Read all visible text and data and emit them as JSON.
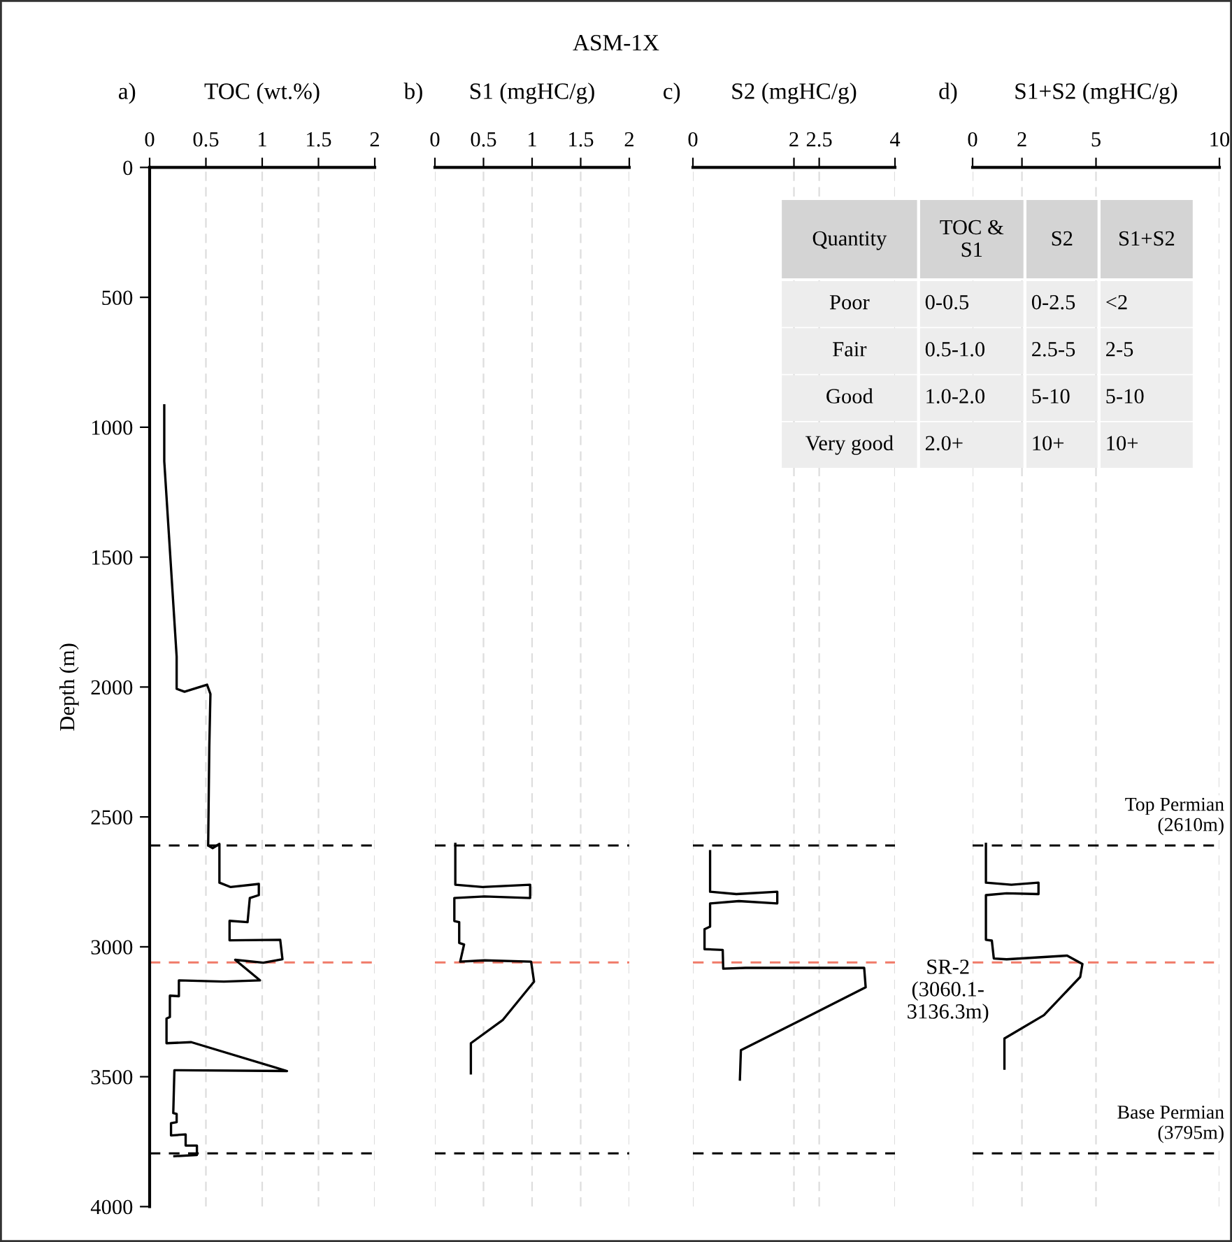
{
  "chart_data": [
    {
      "type": "line",
      "xlabel": "TOC (wt.%)",
      "ylabel": "Depth (m)",
      "annotations": [
        "a)"
      ],
      "xlim": [
        0,
        2
      ],
      "xticks": [
        0,
        0.5,
        1,
        1.5,
        2
      ],
      "ylim": [
        4000,
        0
      ],
      "yticks": [
        0,
        500,
        1000,
        1500,
        2000,
        2500,
        3000,
        3500,
        4000
      ],
      "grid": "x",
      "line_style": "solid",
      "series": [
        {
          "color": "#000000",
          "x": [
            0.13,
            0.13,
            0.24,
            0.24,
            0.31,
            0.51,
            0.54,
            0.53,
            0.52,
            0.56,
            0.62,
            0.62,
            0.72,
            0.97,
            0.97,
            0.89,
            0.87,
            0.71,
            0.71,
            1.16,
            1.18,
            1.01,
            0.76,
            0.98,
            0.66,
            0.26,
            0.26,
            0.18,
            0.18,
            0.15,
            0.15,
            0.37,
            1.22,
            0.22,
            0.21,
            0.24,
            0.24,
            0.19,
            0.19,
            0.32,
            0.32,
            0.42,
            0.42,
            0.22
          ],
          "values": [
            916,
            1131,
            1883,
            2007,
            2018,
            1991,
            2027,
            2233,
            2610,
            2620,
            2604,
            2753,
            2770,
            2758,
            2801,
            2812,
            2905,
            2900,
            2975,
            2973,
            3048,
            3061,
            3050,
            3129,
            3134,
            3129,
            3190,
            3188,
            3270,
            3276,
            3371,
            3367,
            3478,
            3475,
            3640,
            3643,
            3675,
            3679,
            3726,
            3722,
            3765,
            3765,
            3801,
            3806
          ]
        }
      ],
      "ref_lines": [
        {
          "axis": "y",
          "value": 2610,
          "color": "#000000",
          "line_style": "dashed"
        },
        {
          "axis": "y",
          "value": 3060.1,
          "color": "#f07a68",
          "line_style": "dashed"
        },
        {
          "axis": "y",
          "value": 3795,
          "color": "#000000",
          "line_style": "dashed"
        }
      ]
    },
    {
      "type": "line",
      "title": "ASM-1X",
      "xlabel": "S1 (mgHC/g)",
      "annotations": [
        "b)"
      ],
      "xlim": [
        0,
        2
      ],
      "xticks": [
        0,
        0.5,
        1,
        1.5,
        2
      ],
      "ylim": [
        4000,
        0
      ],
      "tick_labels": "x",
      "grid": "x",
      "line_style": "solid",
      "series": [
        {
          "color": "#000000",
          "x": [
            0.21,
            0.21,
            0.49,
            0.98,
            0.98,
            0.51,
            0.2,
            0.2,
            0.25,
            0.25,
            0.3,
            0.26,
            0.51,
            0.99,
            1.02,
            0.7,
            0.37,
            0.37
          ],
          "values": [
            2604,
            2761,
            2770,
            2761,
            2812,
            2806,
            2812,
            2901,
            2905,
            2985,
            2991,
            3057,
            3052,
            3057,
            3134,
            3281,
            3371,
            3487
          ]
        }
      ],
      "ref_lines": [
        {
          "axis": "y",
          "value": 2610,
          "color": "#000000",
          "line_style": "dashed"
        },
        {
          "axis": "y",
          "value": 3060.1,
          "color": "#f07a68",
          "line_style": "dashed"
        },
        {
          "axis": "y",
          "value": 3795,
          "color": "#000000",
          "line_style": "dashed"
        }
      ]
    },
    {
      "type": "line",
      "xlabel": "S2 (mgHC/g)",
      "annotations": [
        "c)"
      ],
      "xlim": [
        0,
        4
      ],
      "xticks": [
        0,
        2,
        2.5,
        4
      ],
      "ylim": [
        4000,
        0
      ],
      "tick_labels": "x",
      "grid": "x",
      "line_style": "solid",
      "series": [
        {
          "color": "#000000",
          "x": [
            0.34,
            0.34,
            0.86,
            1.67,
            1.67,
            0.91,
            0.34,
            0.34,
            0.23,
            0.23,
            0.59,
            0.6,
            1.04,
            3.39,
            3.42,
            2.15,
            0.95,
            0.93
          ],
          "values": [
            2632,
            2788,
            2797,
            2788,
            2833,
            2824,
            2833,
            2922,
            2932,
            3009,
            3012,
            3084,
            3081,
            3081,
            3156,
            3281,
            3398,
            3511
          ]
        }
      ],
      "ref_lines": [
        {
          "axis": "y",
          "value": 2610,
          "color": "#000000",
          "line_style": "dashed"
        },
        {
          "axis": "y",
          "value": 3060.1,
          "color": "#f07a68",
          "line_style": "dashed"
        },
        {
          "axis": "y",
          "value": 3795,
          "color": "#000000",
          "line_style": "dashed"
        }
      ]
    },
    {
      "type": "line",
      "xlabel": "S1+S2 (mgHC/g)",
      "annotations": [
        "d)",
        "SR-2\n(3060.1-\n3136.3m)"
      ],
      "xlim": [
        0,
        10
      ],
      "xticks": [
        0,
        2,
        5,
        10
      ],
      "ylim": [
        4000,
        0
      ],
      "tick_labels": "x",
      "grid": "x",
      "line_style": "solid",
      "series": [
        {
          "color": "#000000",
          "x": [
            0.54,
            0.54,
            1.57,
            2.67,
            2.67,
            1.38,
            0.54,
            0.54,
            0.78,
            0.86,
            1.38,
            3.83,
            4.45,
            4.36,
            2.89,
            1.29,
            1.29
          ],
          "values": [
            2604,
            2753,
            2761,
            2753,
            2797,
            2794,
            2801,
            2973,
            2976,
            3045,
            3048,
            3034,
            3066,
            3116,
            3263,
            3353,
            3469
          ]
        }
      ],
      "ref_lines": [
        {
          "axis": "y",
          "value": 2610,
          "label": "Top Permian\n(2610m)",
          "color": "#000000",
          "line_style": "dashed"
        },
        {
          "axis": "y",
          "value": 3060.1,
          "color": "#f07a68",
          "line_style": "dashed"
        },
        {
          "axis": "y",
          "value": 3795,
          "label": "Base Permian\n(3795m)",
          "color": "#000000",
          "line_style": "dashed"
        }
      ]
    },
    {
      "type": "other",
      "categories": [
        "Quantity",
        "TOC &\nS1",
        "S2",
        "S1+S2"
      ],
      "y_categories": [
        "Poor",
        "Fair",
        "Good",
        "Very good"
      ],
      "cell_labels": [
        [
          "0-0.5",
          "0-2.5",
          "<2"
        ],
        [
          "0.5-1.0",
          "2.5-5",
          "2-5"
        ],
        [
          "1.0-2.0",
          "5-10",
          "5-10"
        ],
        [
          "2.0+",
          "10+",
          "10+"
        ]
      ]
    }
  ]
}
